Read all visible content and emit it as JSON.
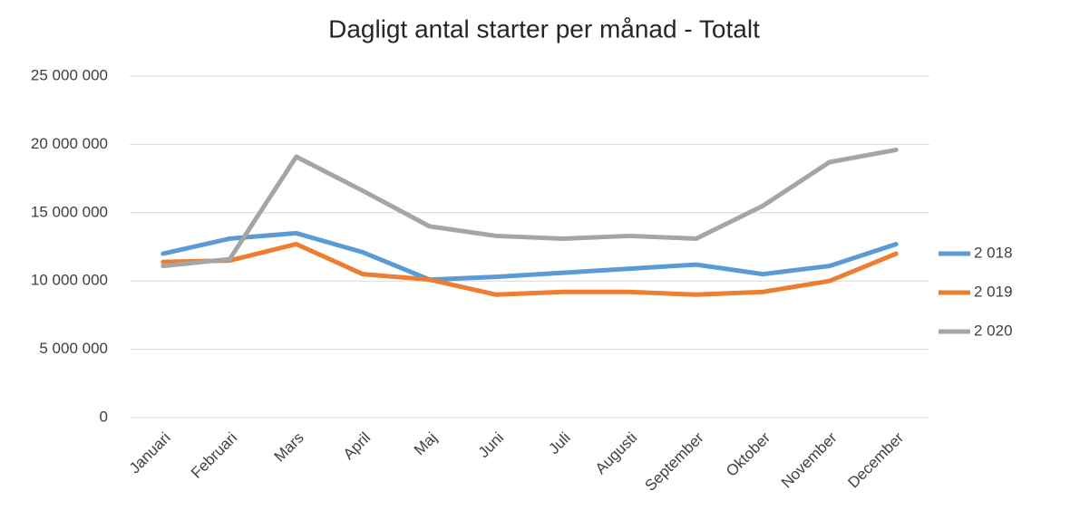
{
  "chart_data": {
    "type": "line",
    "title": "Dagligt antal starter per månad - Totalt",
    "categories": [
      "Januari",
      "Februari",
      "Mars",
      "April",
      "Maj",
      "Juni",
      "Juli",
      "Augusti",
      "September",
      "Oktober",
      "November",
      "December"
    ],
    "series": [
      {
        "name": "2 018",
        "color": "#5b9bd5",
        "values": [
          12000000,
          13100000,
          13500000,
          12100000,
          10100000,
          10300000,
          10600000,
          10900000,
          11200000,
          10500000,
          11100000,
          12700000
        ]
      },
      {
        "name": "2 019",
        "color": "#ed7d31",
        "values": [
          11400000,
          11500000,
          12700000,
          10500000,
          10100000,
          9000000,
          9200000,
          9200000,
          9000000,
          9200000,
          10000000,
          12000000
        ]
      },
      {
        "name": "2 020",
        "color": "#a5a5a5",
        "values": [
          11100000,
          11600000,
          19100000,
          16600000,
          14000000,
          13300000,
          13100000,
          13300000,
          13100000,
          15500000,
          18700000,
          19600000
        ]
      }
    ],
    "ylim": [
      0,
      25000000
    ],
    "yticks": [
      0,
      {
        "value": 5000000,
        "label": "5 000 000"
      },
      {
        "value": 10000000,
        "label": "10 000 000"
      },
      {
        "value": 15000000,
        "label": "15 000 000"
      },
      {
        "value": 20000000,
        "label": "20 000 000"
      },
      {
        "value": 25000000,
        "label": "25 000 000"
      }
    ],
    "grid": true,
    "legend": "right"
  }
}
